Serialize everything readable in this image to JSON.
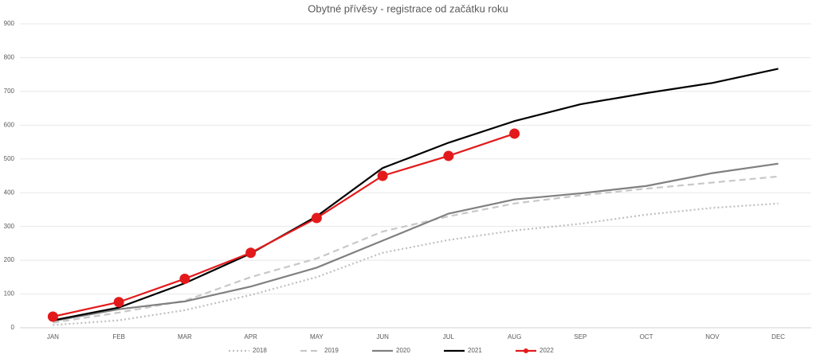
{
  "chart_data": {
    "type": "line",
    "title": "Obytné přívěsy - registrace od začátku roku",
    "categories": [
      "JAN",
      "FEB",
      "MAR",
      "APR",
      "MAY",
      "JUN",
      "JUL",
      "AUG",
      "SEP",
      "OCT",
      "NOV",
      "DEC"
    ],
    "ylim": [
      0,
      900
    ],
    "yticks": [
      0,
      100,
      200,
      300,
      400,
      500,
      600,
      700,
      800,
      900
    ],
    "grid": true,
    "legend": "bottom",
    "series": [
      {
        "name": "2018",
        "color": "#bfbfbf",
        "dash": "dotted",
        "marker": false,
        "values": [
          8,
          22,
          52,
          97,
          150,
          222,
          260,
          288,
          308,
          335,
          355,
          368
        ]
      },
      {
        "name": "2019",
        "color": "#c8c8c8",
        "dash": "dashed",
        "marker": false,
        "values": [
          15,
          45,
          80,
          150,
          205,
          285,
          330,
          368,
          392,
          412,
          430,
          448
        ]
      },
      {
        "name": "2020",
        "color": "#808080",
        "dash": "solid",
        "marker": false,
        "values": [
          20,
          55,
          78,
          122,
          178,
          258,
          338,
          380,
          398,
          420,
          458,
          486
        ]
      },
      {
        "name": "2021",
        "color": "#000000",
        "dash": "solid",
        "marker": false,
        "values": [
          22,
          60,
          132,
          220,
          330,
          473,
          548,
          612,
          662,
          695,
          725,
          767
        ]
      },
      {
        "name": "2022",
        "color": "#e31a1c",
        "dash": "solid",
        "marker": true,
        "values": [
          33,
          76,
          145,
          222,
          325,
          450,
          509,
          575,
          null,
          null,
          null,
          null
        ]
      }
    ]
  }
}
